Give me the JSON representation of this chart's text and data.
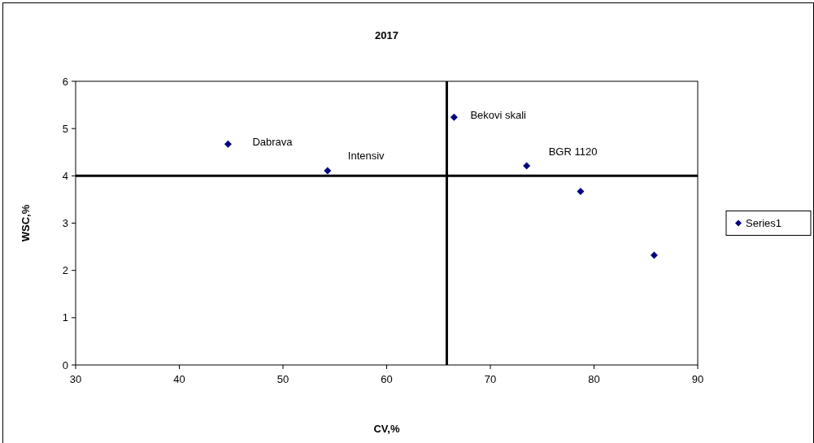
{
  "chart_data": {
    "type": "scatter",
    "title": "2017",
    "xlabel": "CV,%",
    "ylabel": "WSC,%",
    "x": [
      44.7,
      54.3,
      66.5,
      73.5,
      78.7,
      85.8
    ],
    "series": [
      {
        "name": "Series1",
        "color": "#000080",
        "values": [
          4.67,
          4.11,
          5.24,
          4.21,
          3.67,
          2.32
        ]
      }
    ],
    "xlim": [
      30,
      90
    ],
    "xticks": [
      30,
      40,
      50,
      60,
      70,
      80,
      90
    ],
    "ylim": [
      0,
      6
    ],
    "yticks": [
      0,
      1,
      2,
      3,
      4,
      5,
      6
    ],
    "ref_lines": [
      {
        "axis": "y",
        "value": 4,
        "color": "#000000"
      },
      {
        "axis": "x",
        "value": 65.8,
        "color": "#000000"
      }
    ],
    "annotations": [
      {
        "text": "Dabrava",
        "x": 44.7,
        "y": 4.67
      },
      {
        "text": "Intensiv",
        "x": 54.3,
        "y": 4.11
      },
      {
        "text": "Bekovi skali",
        "x": 66.5,
        "y": 5.24
      },
      {
        "text": "BGR 1120",
        "x": 73.5,
        "y": 4.21
      }
    ],
    "marker": "diamond",
    "legend": "right",
    "grid": false
  }
}
